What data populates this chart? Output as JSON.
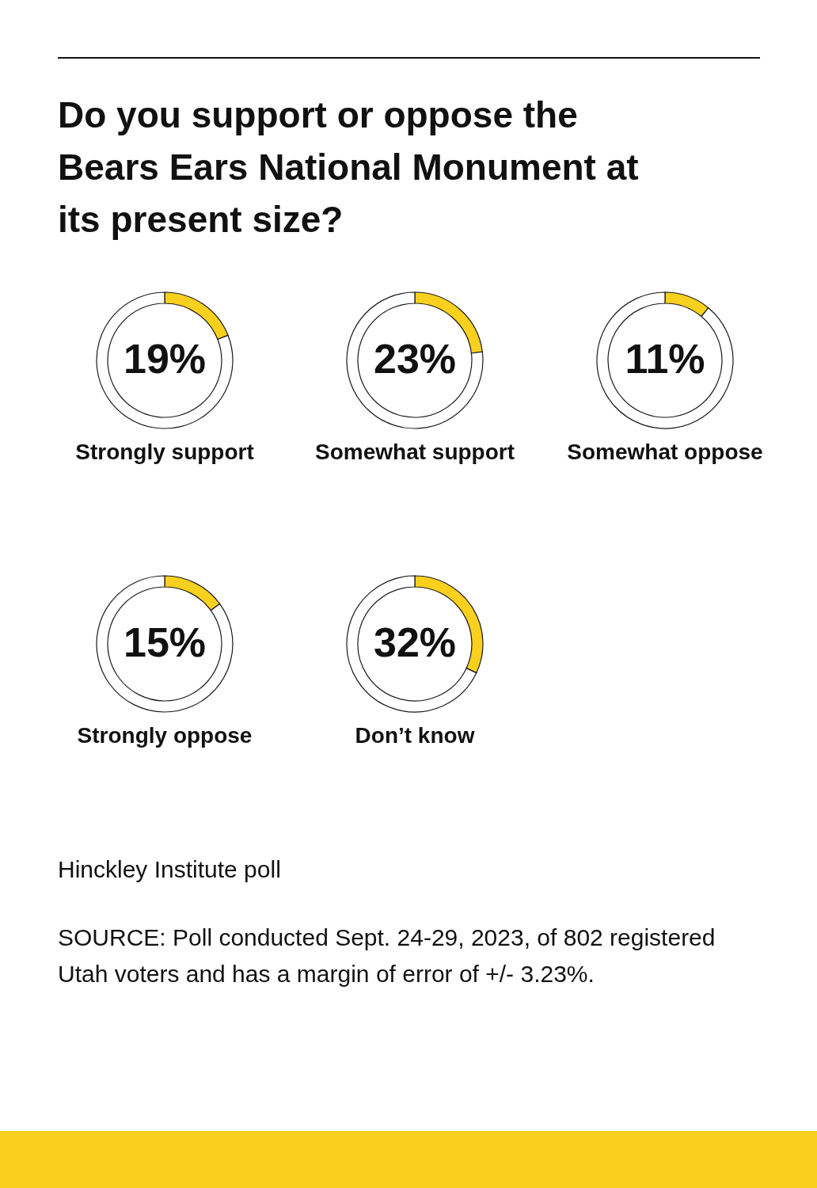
{
  "chart_data": [
    {
      "type": "donut",
      "title": "Do you support or oppose the Bears Ears National Monument at its present size?",
      "xlabel": "Strongly support",
      "categories": [
        null,
        null
      ],
      "values": [
        19,
        81
      ],
      "colors": [
        "#f9d01e",
        "#ffffff"
      ],
      "value_labels": [
        "19%",
        null
      ]
    },
    {
      "type": "donut",
      "xlabel": "Somewhat support",
      "categories": [
        null,
        null
      ],
      "values": [
        23,
        77
      ],
      "colors": [
        "#f9d01e",
        "#ffffff"
      ],
      "value_labels": [
        "23%",
        null
      ]
    },
    {
      "type": "donut",
      "xlabel": "Somewhat oppose",
      "categories": [
        null,
        null
      ],
      "values": [
        11,
        89
      ],
      "colors": [
        "#f9d01e",
        "#ffffff"
      ],
      "value_labels": [
        "11%",
        null
      ]
    },
    {
      "type": "donut",
      "xlabel": "Strongly oppose",
      "categories": [
        null,
        null
      ],
      "values": [
        15,
        85
      ],
      "colors": [
        "#f9d01e",
        "#ffffff"
      ],
      "value_labels": [
        "15%",
        null
      ]
    },
    {
      "type": "donut",
      "xlabel": "Don’t know",
      "categories": [
        null,
        null
      ],
      "values": [
        32,
        68
      ],
      "colors": [
        "#f9d01e",
        "#ffffff"
      ],
      "value_labels": [
        "32%",
        null
      ],
      "annotations": [
        "Hinckley Institute poll",
        "SOURCE: Poll conducted Sept. 24-29, 2023, of 802 registered Utah voters and has a margin of error of +/- 3.23%."
      ]
    }
  ]
}
